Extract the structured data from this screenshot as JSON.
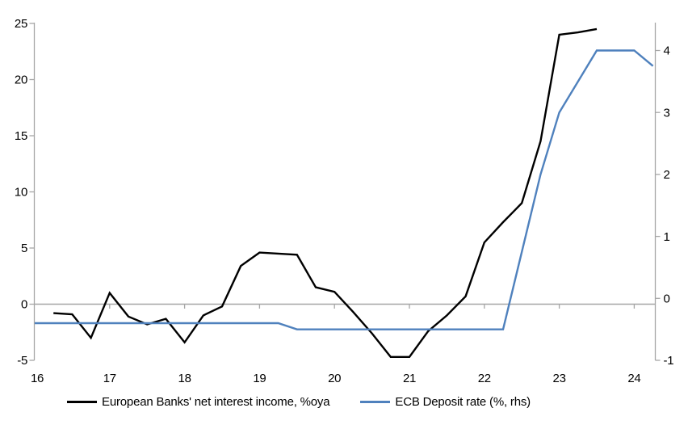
{
  "chart_data": {
    "type": "line",
    "title": "",
    "frequency": "quarterly",
    "x_axis": {
      "tick_labels": [
        "16",
        "17",
        "18",
        "19",
        "20",
        "21",
        "22",
        "23",
        "24"
      ],
      "start": "2016Q1",
      "end": "2024Q2"
    },
    "left_axis": {
      "ticks": [
        -5,
        0,
        5,
        10,
        15,
        20,
        25
      ],
      "range": [
        -5,
        25
      ]
    },
    "right_axis": {
      "ticks": [
        -1,
        0,
        1,
        2,
        3,
        4
      ],
      "range": [
        -1,
        4.45
      ]
    },
    "zero_line": true,
    "grid": "zero-line-only",
    "legend_position": "bottom",
    "series": [
      {
        "name": "European Banks' net interest income, %oya",
        "axis": "left",
        "color": "#000000",
        "start": "2016Q2",
        "values": [
          -0.8,
          -0.9,
          -3.0,
          1.0,
          -1.1,
          -1.8,
          -1.3,
          -3.4,
          -1.0,
          -0.2,
          3.4,
          4.6,
          4.5,
          4.4,
          1.5,
          1.1,
          -0.7,
          -2.6,
          -4.7,
          -4.7,
          -2.4,
          -1.0,
          0.7,
          5.5,
          7.3,
          9.0,
          14.5,
          24.0,
          24.2,
          24.5
        ]
      },
      {
        "name": "ECB Deposit rate (%, rhs)",
        "axis": "right",
        "color": "#4f81bd",
        "start": "2016Q1",
        "values": [
          -0.4,
          -0.4,
          -0.4,
          -0.4,
          -0.4,
          -0.4,
          -0.4,
          -0.4,
          -0.4,
          -0.4,
          -0.4,
          -0.4,
          -0.4,
          -0.4,
          -0.5,
          -0.5,
          -0.5,
          -0.5,
          -0.5,
          -0.5,
          -0.5,
          -0.5,
          -0.5,
          -0.5,
          -0.5,
          -0.5,
          0.75,
          2.0,
          3.0,
          3.5,
          4.0,
          4.0,
          4.0,
          3.75
        ]
      }
    ]
  },
  "colors": {
    "axis": "#a6a6a6",
    "zero_line": "#a6a6a6",
    "text": "#000000",
    "background": "#ffffff"
  }
}
